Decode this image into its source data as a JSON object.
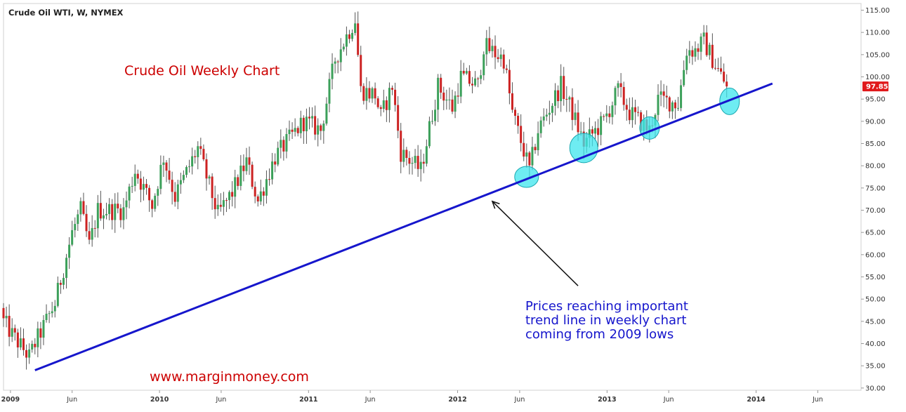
{
  "chart_data": {
    "type": "candlestick",
    "symbol_title": "Crude Oil WTI, W, NYMEX",
    "title": "Crude Oil Weekly Chart",
    "website": "www.marginmoney.com",
    "annotation_lines": [
      "Prices reaching important",
      "trend line in weekly chart",
      "coming from 2009 lows"
    ],
    "last_price_label": "97.85",
    "last_price": 97.85,
    "y_axis": {
      "range": [
        29.5,
        116.5
      ],
      "ticks": [
        30,
        35,
        40,
        45,
        50,
        55,
        60,
        65,
        70,
        75,
        80,
        85,
        90,
        95,
        100,
        105,
        110,
        115
      ],
      "tick_labels": [
        "30.00",
        "35.00",
        "40.00",
        "45.00",
        "50.00",
        "55.00",
        "60.00",
        "65.00",
        "70.00",
        "75.00",
        "80.00",
        "85.00",
        "90.00",
        "95.00",
        "100.00",
        "105.00",
        "110.00",
        "115.00"
      ]
    },
    "x_axis": {
      "range": [
        "2008-12-15",
        "2014-09-15"
      ],
      "labels": [
        {
          "date": "2009-01-01",
          "text": "2009",
          "year": true
        },
        {
          "date": "2009-06-01",
          "text": "Jun",
          "year": false
        },
        {
          "date": "2010-01-01",
          "text": "2010",
          "year": true
        },
        {
          "date": "2010-06-01",
          "text": "Jun",
          "year": false
        },
        {
          "date": "2011-01-01",
          "text": "2011",
          "year": true
        },
        {
          "date": "2011-06-01",
          "text": "Jun",
          "year": false
        },
        {
          "date": "2012-01-01",
          "text": "2012",
          "year": true
        },
        {
          "date": "2012-06-01",
          "text": "Jun",
          "year": false
        },
        {
          "date": "2013-01-01",
          "text": "2013",
          "year": true
        },
        {
          "date": "2013-06-01",
          "text": "Jun",
          "year": false
        },
        {
          "date": "2014-01-01",
          "text": "2014",
          "year": true
        },
        {
          "date": "2014-06-01",
          "text": "Jun",
          "year": false
        }
      ]
    },
    "trend_line": {
      "start": {
        "date": "2009-03-02",
        "price": 34
      },
      "end": {
        "date": "2014-02-10",
        "price": 98.5
      }
    },
    "highlight_circles": [
      {
        "date": "2012-06-18",
        "price": 77.5
      },
      {
        "date": "2012-11-05",
        "price": 84
      },
      {
        "date": "2013-04-15",
        "price": 88.5
      },
      {
        "date": "2013-10-28",
        "price": 94.5
      }
    ],
    "arrow": {
      "from": {
        "date": "2012-10-22",
        "price": 53
      },
      "to": {
        "date": "2012-03-26",
        "price": 72
      }
    },
    "candle_path": [
      [
        "2008-12-15",
        45
      ],
      [
        "2009-01-05",
        42
      ],
      [
        "2009-02-16",
        37
      ],
      [
        "2009-03-02",
        40
      ],
      [
        "2009-04-20",
        49
      ],
      [
        "2009-06-01",
        65
      ],
      [
        "2009-06-22",
        70
      ],
      [
        "2009-07-13",
        62
      ],
      [
        "2009-08-03",
        70
      ],
      [
        "2009-10-05",
        70
      ],
      [
        "2009-11-02",
        79
      ],
      [
        "2009-12-14",
        71
      ],
      [
        "2010-01-11",
        82
      ],
      [
        "2010-02-08",
        73
      ],
      [
        "2010-04-05",
        84
      ],
      [
        "2010-05-24",
        69
      ],
      [
        "2010-06-28",
        74
      ],
      [
        "2010-08-02",
        81
      ],
      [
        "2010-08-30",
        72
      ],
      [
        "2010-10-11",
        82
      ],
      [
        "2010-12-20",
        90
      ],
      [
        "2011-01-31",
        88
      ],
      [
        "2011-03-07",
        104
      ],
      [
        "2011-04-25",
        113
      ],
      [
        "2011-05-09",
        97
      ],
      [
        "2011-06-13",
        96
      ],
      [
        "2011-06-27",
        91
      ],
      [
        "2011-07-25",
        98
      ],
      [
        "2011-08-15",
        83
      ],
      [
        "2011-10-03",
        79
      ],
      [
        "2011-11-14",
        98
      ],
      [
        "2011-12-19",
        93
      ],
      [
        "2012-01-09",
        100
      ],
      [
        "2012-02-20",
        98
      ],
      [
        "2012-03-05",
        107
      ],
      [
        "2012-04-23",
        104
      ],
      [
        "2012-05-14",
        92
      ],
      [
        "2012-06-25",
        79
      ],
      [
        "2012-07-16",
        88
      ],
      [
        "2012-09-10",
        98
      ],
      [
        "2012-10-08",
        92
      ],
      [
        "2012-11-05",
        85
      ],
      [
        "2012-12-24",
        90
      ],
      [
        "2013-01-28",
        97
      ],
      [
        "2013-02-25",
        92
      ],
      [
        "2013-04-15",
        88
      ],
      [
        "2013-05-06",
        95
      ],
      [
        "2013-06-24",
        94
      ],
      [
        "2013-07-15",
        106
      ],
      [
        "2013-08-05",
        106
      ],
      [
        "2013-08-26",
        108
      ],
      [
        "2013-09-16",
        104
      ],
      [
        "2013-10-21",
        97.85
      ]
    ]
  }
}
